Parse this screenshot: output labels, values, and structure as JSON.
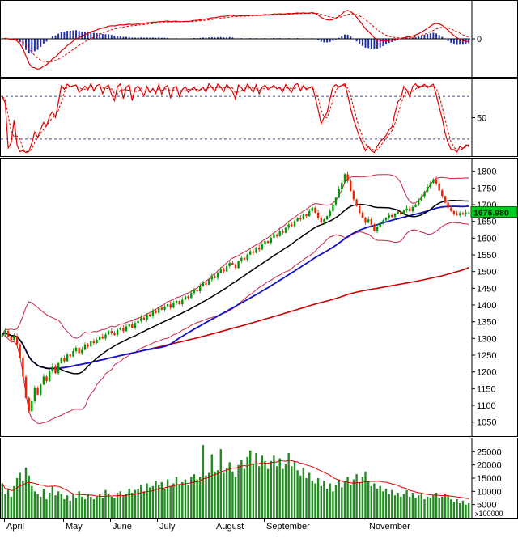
{
  "chart_data": {
    "type": "candlestick-multi-panel",
    "description": "Stock index technical analysis chart: MACD panel, Stochastic panel, candlestick price panel with Bollinger Bands and 3 moving averages, volume panel",
    "x_axis": {
      "month_labels": [
        {
          "label": "April",
          "day": 1
        },
        {
          "label": "May",
          "day": 21
        },
        {
          "label": "June",
          "day": 37
        },
        {
          "label": "July",
          "day": 53
        },
        {
          "label": "August",
          "day": 72
        },
        {
          "label": "September",
          "day": 89
        },
        {
          "label": "November",
          "day": 124
        }
      ]
    },
    "macd_panel": {
      "y_ticks": [
        0
      ],
      "lines": [
        "macd-red-solid",
        "signal-red-dashed"
      ],
      "histogram_color_name": "blue"
    },
    "stoch_panel": {
      "y_ticks": [
        50
      ],
      "ref_lines": [
        80,
        20
      ],
      "lines": [
        "stoch-k-red-solid",
        "stoch-d-red-dashed"
      ]
    },
    "price_panel": {
      "y_ticks": [
        1800,
        1750,
        1700,
        1650,
        1600,
        1550,
        1500,
        1450,
        1400,
        1350,
        1300,
        1250,
        1200,
        1150,
        1100,
        1050
      ],
      "ylim": [
        1008,
        1838
      ],
      "last_price": 1676.98,
      "last_price_label": "1676.980",
      "overlays": [
        "bollinger-bands-red",
        "sma20-black",
        "sma50-blue",
        "sma150-red"
      ],
      "closes": [
        1312,
        1322,
        1305,
        1295,
        1308,
        1282,
        1242,
        1185,
        1122,
        1082,
        1112,
        1152,
        1132,
        1162,
        1186,
        1172,
        1202,
        1216,
        1196,
        1226,
        1242,
        1232,
        1252,
        1246,
        1262,
        1272,
        1256,
        1266,
        1282,
        1276,
        1292,
        1286,
        1296,
        1306,
        1300,
        1312,
        1322,
        1316,
        1310,
        1326,
        1332,
        1322,
        1336,
        1342,
        1332,
        1346,
        1352,
        1362,
        1356,
        1372,
        1366,
        1382,
        1376,
        1392,
        1386,
        1396,
        1402,
        1392,
        1406,
        1412,
        1402,
        1416,
        1426,
        1421,
        1436,
        1446,
        1441,
        1456,
        1466,
        1461,
        1476,
        1486,
        1481,
        1496,
        1506,
        1501,
        1516,
        1526,
        1521,
        1511,
        1531,
        1541,
        1536,
        1551,
        1561,
        1556,
        1571,
        1566,
        1581,
        1591,
        1586,
        1601,
        1611,
        1606,
        1621,
        1616,
        1631,
        1641,
        1636,
        1651,
        1661,
        1656,
        1671,
        1666,
        1681,
        1691,
        1676,
        1661,
        1646,
        1656,
        1666,
        1681,
        1701,
        1721,
        1746,
        1766,
        1791,
        1771,
        1741,
        1716,
        1696,
        1676,
        1661,
        1646,
        1656,
        1641,
        1621,
        1633,
        1646,
        1653,
        1661,
        1669,
        1663,
        1673,
        1679,
        1671,
        1683,
        1689,
        1681,
        1693,
        1701,
        1713,
        1725,
        1739,
        1753,
        1765,
        1776,
        1763,
        1743,
        1726,
        1706,
        1691,
        1681,
        1673,
        1669,
        1675,
        1671,
        1677,
        1677
      ]
    },
    "volume_panel": {
      "y_ticks": [
        25000,
        20000,
        15000,
        10000,
        5000
      ],
      "unit_label": "x100000",
      "ylim": [
        0,
        30000
      ],
      "ma_line": "red",
      "volumes": [
        13000,
        9000,
        11000,
        8000,
        12000,
        15000,
        17000,
        14000,
        19000,
        16000,
        12000,
        10000,
        9000,
        8000,
        11000,
        7000,
        9500,
        12000,
        8500,
        10000,
        9000,
        7000,
        8500,
        6500,
        9000,
        7500,
        10000,
        8000,
        7000,
        9000,
        8000,
        7000,
        8000,
        9000,
        7500,
        10500,
        9000,
        8000,
        7500,
        9500,
        10000,
        8500,
        9000,
        11000,
        9500,
        10500,
        11000,
        12500,
        10000,
        13000,
        11500,
        12000,
        14000,
        12500,
        13500,
        11000,
        14500,
        12000,
        13000,
        15500,
        12500,
        13500,
        14500,
        12500,
        15500,
        16500,
        14500,
        15500,
        27500,
        16000,
        17000,
        24000,
        17500,
        18000,
        26000,
        17000,
        19000,
        21000,
        17500,
        15500,
        20000,
        22000,
        18500,
        23000,
        25500,
        20500,
        24500,
        19500,
        23500,
        21500,
        18500,
        21500,
        23500,
        19500,
        22500,
        18500,
        20500,
        24500,
        19500,
        21500,
        18000,
        16000,
        19000,
        15000,
        17000,
        14000,
        13000,
        15000,
        12000,
        14000,
        11000,
        13000,
        10000,
        12500,
        14500,
        11500,
        13500,
        15500,
        12500,
        14500,
        16500,
        13500,
        15500,
        17500,
        14000,
        12000,
        13000,
        11000,
        12000,
        10000,
        11000,
        9000,
        10500,
        8500,
        9500,
        8000,
        9000,
        10500,
        8000,
        9500,
        7500,
        8500,
        9000,
        7000,
        8000,
        7500,
        8500,
        9500,
        7500,
        8000,
        9000,
        8500,
        7000,
        6000,
        7000,
        5500,
        6500,
        5000,
        5500
      ]
    }
  },
  "colors": {
    "up_candle": "#009900",
    "down_candle": "#ee2200",
    "macd_line": "#dd0000",
    "signal_line": "#dd0000",
    "histogram": "#2233aa",
    "stoch_k": "#dd0000",
    "stoch_d": "#cc0000",
    "ref_line": "#4444bb",
    "bollinger": "#cc2244",
    "ma_fast": "#000000",
    "ma_mid": "#1111cc",
    "ma_slow": "#cc0000",
    "volume_bar": "#228b22",
    "volume_ma": "#dd0000",
    "last_price_bg": "#00cc22",
    "axis_text": "#000000"
  }
}
